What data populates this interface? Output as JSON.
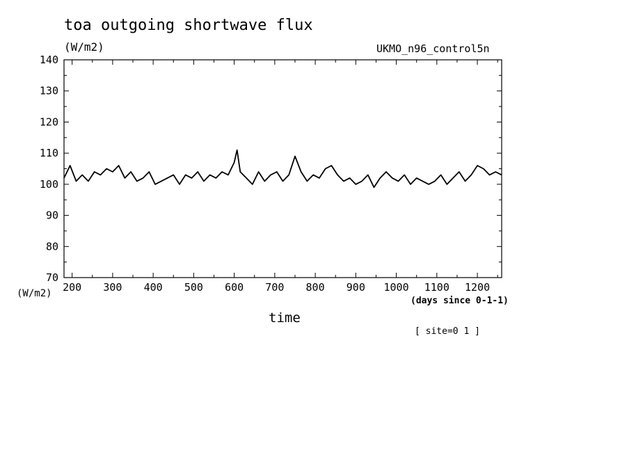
{
  "header": {
    "title": "toa outgoing shortwave flux",
    "units": "(W/m2)",
    "run_name": "UKMO_n96_control5n"
  },
  "axes": {
    "y_units_bottom": "(W/m2)",
    "x_units": "(days since 0-1-1)",
    "x_label": "time"
  },
  "footer": {
    "site": "[ site=0 1 ]"
  },
  "chart_data": {
    "type": "line",
    "title": "toa outgoing shortwave flux",
    "ylabel": "(W/m2)",
    "xlabel": "time",
    "xunits": "(days since 0-1-1)",
    "xlim": [
      180,
      1260
    ],
    "ylim": [
      70,
      140
    ],
    "xticks": [
      200,
      300,
      400,
      500,
      600,
      700,
      800,
      900,
      1000,
      1100,
      1200
    ],
    "yticks": [
      70,
      80,
      90,
      100,
      110,
      120,
      130,
      140
    ],
    "grid": false,
    "series": [
      {
        "color": "#000000",
        "x": [
          180,
          195,
          210,
          225,
          240,
          255,
          270,
          285,
          300,
          315,
          330,
          345,
          360,
          375,
          390,
          405,
          420,
          435,
          450,
          465,
          480,
          495,
          510,
          525,
          540,
          555,
          570,
          585,
          600,
          607,
          615,
          630,
          645,
          660,
          675,
          690,
          705,
          720,
          735,
          750,
          765,
          780,
          795,
          810,
          825,
          840,
          855,
          870,
          885,
          900,
          915,
          930,
          945,
          960,
          975,
          990,
          1005,
          1020,
          1035,
          1050,
          1065,
          1080,
          1095,
          1110,
          1125,
          1140,
          1155,
          1170,
          1185,
          1200,
          1215,
          1230,
          1245,
          1260
        ],
        "values": [
          102,
          106,
          101,
          103,
          101,
          104,
          103,
          105,
          104,
          106,
          102,
          104,
          101,
          102,
          104,
          100,
          101,
          102,
          103,
          100,
          103,
          102,
          104,
          101,
          103,
          102,
          104,
          103,
          107,
          111,
          104,
          102,
          100,
          104,
          101,
          103,
          104,
          101,
          103,
          109,
          104,
          101,
          103,
          102,
          105,
          106,
          103,
          101,
          102,
          100,
          101,
          103,
          99,
          102,
          104,
          102,
          101,
          103,
          100,
          102,
          101,
          100,
          101,
          103,
          100,
          102,
          104,
          101,
          103,
          106,
          105,
          103,
          104,
          103
        ]
      }
    ]
  }
}
